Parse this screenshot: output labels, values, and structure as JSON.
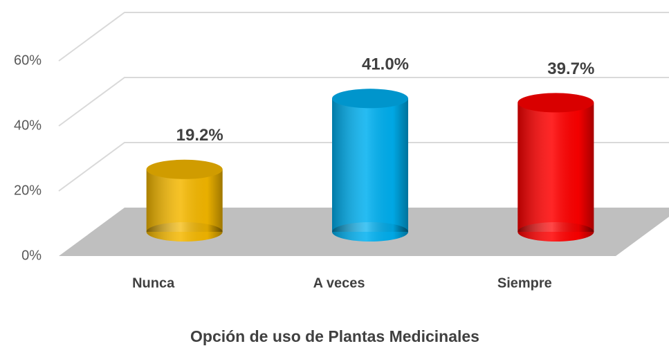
{
  "chart_data": {
    "type": "bar3d",
    "x_label": "Opción de uso de Plantas Medicinales",
    "categories": [
      "Nunca",
      "A veces",
      "Siempre"
    ],
    "values": [
      19.2,
      41.0,
      39.7
    ],
    "value_labels": [
      "19.2%",
      "41.0%",
      "39.7%"
    ],
    "colors": [
      "#f5b800",
      "#00b0f0",
      "#ff0000"
    ],
    "ylim": [
      0,
      60
    ],
    "yticks": [
      {
        "value": 0,
        "label": "0%"
      },
      {
        "value": 20,
        "label": "20%"
      },
      {
        "value": 40,
        "label": "40%"
      },
      {
        "value": 60,
        "label": "60%"
      }
    ],
    "grid": true
  }
}
